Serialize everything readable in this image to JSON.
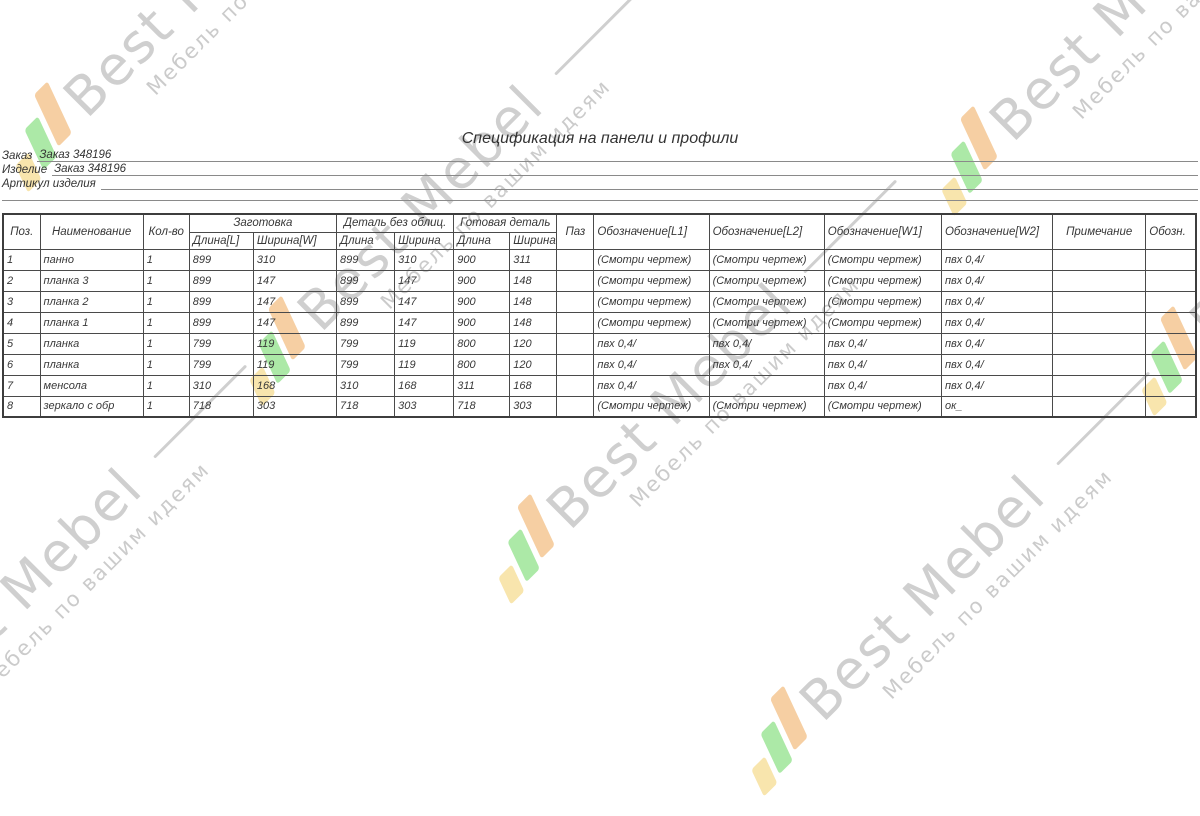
{
  "watermark": {
    "brand": "Best Mebel",
    "tagline": "Мебель по вашим идеям",
    "text_color": "#cfcfcf",
    "logo_colors": [
      "#f8e5ad",
      "#ace9a7",
      "#f6cfa3"
    ]
  },
  "title": "Спецификация на панели и профили",
  "meta": {
    "lines": [
      {
        "label": "Заказ",
        "value": "Заказ 348196"
      },
      {
        "label": "Изделие",
        "value": "Заказ 348196"
      },
      {
        "label": "Артикул изделия",
        "value": ""
      }
    ]
  },
  "table": {
    "header": {
      "poz": "Поз.",
      "name": "Наименование",
      "qty": "Кол-во",
      "zagotovka": "Заготовка",
      "zag_len": "Длина[L]",
      "zag_wid": "Ширина[W]",
      "detail_raw": "Деталь без облиц.",
      "raw_len": "Длина",
      "raw_wid": "Ширина",
      "detail_done": "Готовая деталь",
      "done_len": "Длина",
      "done_wid": "Ширина",
      "paz": "Паз",
      "obl1": "Обозначение[L1]",
      "obl2": "Обозначение[L2]",
      "obw1": "Обозначение[W1]",
      "obw2": "Обозначение[W2]",
      "note": "Примечание",
      "obozn": "Обозн."
    },
    "rows": [
      [
        "1",
        "панно",
        "1",
        "899",
        "310",
        "899",
        "310",
        "900",
        "311",
        "",
        "(Смотри чертеж)",
        "(Смотри чертеж)",
        "(Смотри чертеж)",
        "пвх 0,4/",
        "",
        ""
      ],
      [
        "2",
        "планка 3",
        "1",
        "899",
        "147",
        "899",
        "147",
        "900",
        "148",
        "",
        "(Смотри чертеж)",
        "(Смотри чертеж)",
        "(Смотри чертеж)",
        "пвх 0,4/",
        "",
        ""
      ],
      [
        "3",
        "планка 2",
        "1",
        "899",
        "147",
        "899",
        "147",
        "900",
        "148",
        "",
        "(Смотри чертеж)",
        "(Смотри чертеж)",
        "(Смотри чертеж)",
        "пвх 0,4/",
        "",
        ""
      ],
      [
        "4",
        "планка 1",
        "1",
        "899",
        "147",
        "899",
        "147",
        "900",
        "148",
        "",
        "(Смотри чертеж)",
        "(Смотри чертеж)",
        "(Смотри чертеж)",
        "пвх 0,4/",
        "",
        ""
      ],
      [
        "5",
        "планка",
        "1",
        "799",
        "119",
        "799",
        "119",
        "800",
        "120",
        "",
        "пвх 0,4/",
        "пвх 0,4/",
        "пвх 0,4/",
        "пвх 0,4/",
        "",
        ""
      ],
      [
        "6",
        "планка",
        "1",
        "799",
        "119",
        "799",
        "119",
        "800",
        "120",
        "",
        "пвх 0,4/",
        "пвх 0,4/",
        "пвх 0,4/",
        "пвх 0,4/",
        "",
        ""
      ],
      [
        "7",
        "менсола",
        "1",
        "310",
        "168",
        "310",
        "168",
        "311",
        "168",
        "",
        "пвх 0,4/",
        "",
        "пвх 0,4/",
        "пвх 0,4/",
        "",
        ""
      ],
      [
        "8",
        "зеркало с обр",
        "1",
        "718",
        "303",
        "718",
        "303",
        "718",
        "303",
        "",
        "(Смотри чертеж)",
        "(Смотри чертеж)",
        "(Смотри чертеж)",
        "ок_",
        "",
        ""
      ]
    ]
  }
}
